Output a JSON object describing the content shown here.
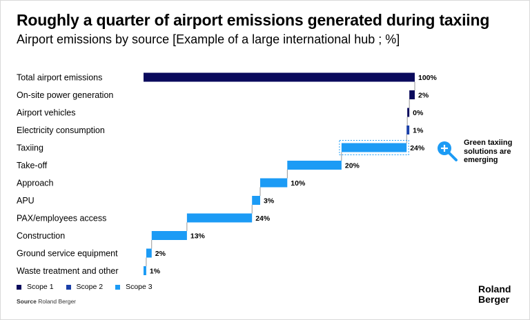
{
  "title": "Roughly a quarter of airport emissions generated during taxiing",
  "subtitle": "Airport emissions by source [Example of a large international hub ; %]",
  "colors": {
    "scope1": "#0a0a5c",
    "scope2": "#1a3fa8",
    "scope3": "#1c9bf5",
    "connector": "#7a7a7a",
    "highlight": "#1c9bf5"
  },
  "legend": [
    {
      "label": "Scope 1",
      "color": "#0a0a5c"
    },
    {
      "label": "Scope 2",
      "color": "#1a3fa8"
    },
    {
      "label": "Scope 3",
      "color": "#1c9bf5"
    }
  ],
  "source_label": "Source",
  "source_text": "Roland Berger",
  "callout": {
    "text": "Green taxiing solutions are emerging",
    "icon": "magnifier-plus-icon"
  },
  "logo": {
    "line1": "Roland",
    "line2": "Berger"
  },
  "chart_data": {
    "type": "bar",
    "subtype": "waterfall",
    "unit": "%",
    "categories": [
      "Total airport emissions",
      "On-site power generation",
      "Airport vehicles",
      "Electricity consumption",
      "Taxiing",
      "Take-off",
      "Approach",
      "APU",
      "PAX/employees access",
      "Construction",
      "Ground service equipment",
      "Waste treatment and other"
    ],
    "values": [
      100,
      2,
      0,
      1,
      24,
      20,
      10,
      3,
      24,
      13,
      2,
      1
    ],
    "labels": [
      "100%",
      "2%",
      "0%",
      "1%",
      "24%",
      "20%",
      "10%",
      "3%",
      "24%",
      "13%",
      "2%",
      "1%"
    ],
    "scopes": [
      "Scope 1",
      "Scope 1",
      "Scope 1",
      "Scope 2",
      "Scope 3",
      "Scope 3",
      "Scope 3",
      "Scope 3",
      "Scope 3",
      "Scope 3",
      "Scope 3",
      "Scope 3"
    ],
    "highlighted": "Taxiing",
    "xlim": [
      0,
      100
    ]
  }
}
